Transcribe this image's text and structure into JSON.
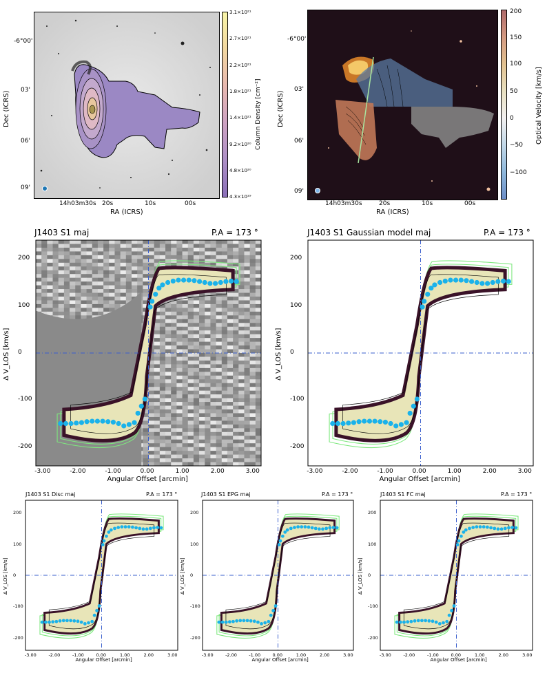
{
  "map1": {
    "xlabel": "RA (ICRS)",
    "ylabel": "Dec (ICRS)",
    "xticks": [
      "14h03m30s",
      "20s",
      "10s",
      "00s"
    ],
    "yticks": [
      "-6°00'",
      "03'",
      "06'",
      "09'"
    ],
    "cbar_label": "Column Density [cm⁻²]",
    "cbar_ticks": [
      "3.1×10²¹",
      "2.7×10²¹",
      "2.2×10²¹",
      "1.8×10²¹",
      "1.4×10²¹",
      "9.2×10²⁰",
      "4.8×10²⁰",
      "4.3×10¹⁹"
    ]
  },
  "map2": {
    "xlabel": "RA (ICRS)",
    "ylabel": "Dec (ICRS)",
    "xticks": [
      "14h03m30s",
      "20s",
      "10s",
      "00s"
    ],
    "yticks": [
      "-6°00'",
      "03'",
      "06'",
      "09'"
    ],
    "cbar_label": "Optical Velocity [km/s]",
    "cbar_ticks": [
      "200",
      "150",
      "100",
      "50",
      "0",
      "−50",
      "−100"
    ]
  },
  "pv": {
    "xlabel": "Angular Offset [arcmin]",
    "ylabel": "Δ V_LOS [km/s]",
    "xticks": [
      "-3.00",
      "-2.00",
      "-1.00",
      "0.00",
      "1.00",
      "2.00",
      "3.00"
    ],
    "yticks": [
      "-200",
      "-100",
      "0",
      "100",
      "200"
    ],
    "panels": [
      {
        "title": "J1403 S1 maj",
        "pa": "P.A = 173 °"
      },
      {
        "title": "J1403 S1 Gaussian model maj",
        "pa": "P.A = 173 °"
      },
      {
        "title": "J1403 S1 Disc maj",
        "pa": "P.A = 173 °"
      },
      {
        "title": "J1403 S1 EPG maj",
        "pa": "P.A = 173 °"
      },
      {
        "title": "J1403 S1 FC maj",
        "pa": "P.A = 173 °"
      }
    ]
  },
  "colors": {
    "rotation_curve": "#1ab2ea",
    "green_contour": "#7ee87e",
    "axis_line": "#3a5fcd",
    "hi_fill": "#9b88c4",
    "pv_fill": "#e8e5b8",
    "pv_edge": "#3a1228"
  },
  "chart_data": [
    {
      "type": "scatter",
      "title": "J1403 S1 maj",
      "xlabel": "Angular Offset [arcmin]",
      "ylabel": "Δ V_LOS [km/s]",
      "xlim": [
        -3.2,
        3.2
      ],
      "ylim": [
        240,
        -240
      ],
      "series": [
        {
          "x": [
            -2.5,
            -2.35,
            -2.2,
            -2.05,
            -1.9,
            -1.75,
            -1.6,
            -1.45,
            -1.3,
            -1.15,
            -1.0,
            -0.85,
            -0.7,
            -0.55,
            -0.4,
            -0.3,
            -0.2,
            -0.1,
            0.05,
            0.1,
            0.2,
            0.3,
            0.4,
            0.55,
            0.7,
            0.85,
            1.0,
            1.15,
            1.3,
            1.45,
            1.6,
            1.75,
            1.9,
            2.05,
            2.2,
            2.35,
            2.5
          ],
          "y": [
            -150,
            -150,
            -150,
            -149,
            -148,
            -146,
            -145,
            -145,
            -145,
            -146,
            -147,
            -150,
            -155,
            -152,
            -148,
            -128,
            -113,
            -98,
            98,
            110,
            125,
            138,
            145,
            150,
            153,
            155,
            155,
            155,
            154,
            152,
            150,
            148,
            148,
            150,
            152,
            153,
            152
          ]
        }
      ]
    }
  ]
}
